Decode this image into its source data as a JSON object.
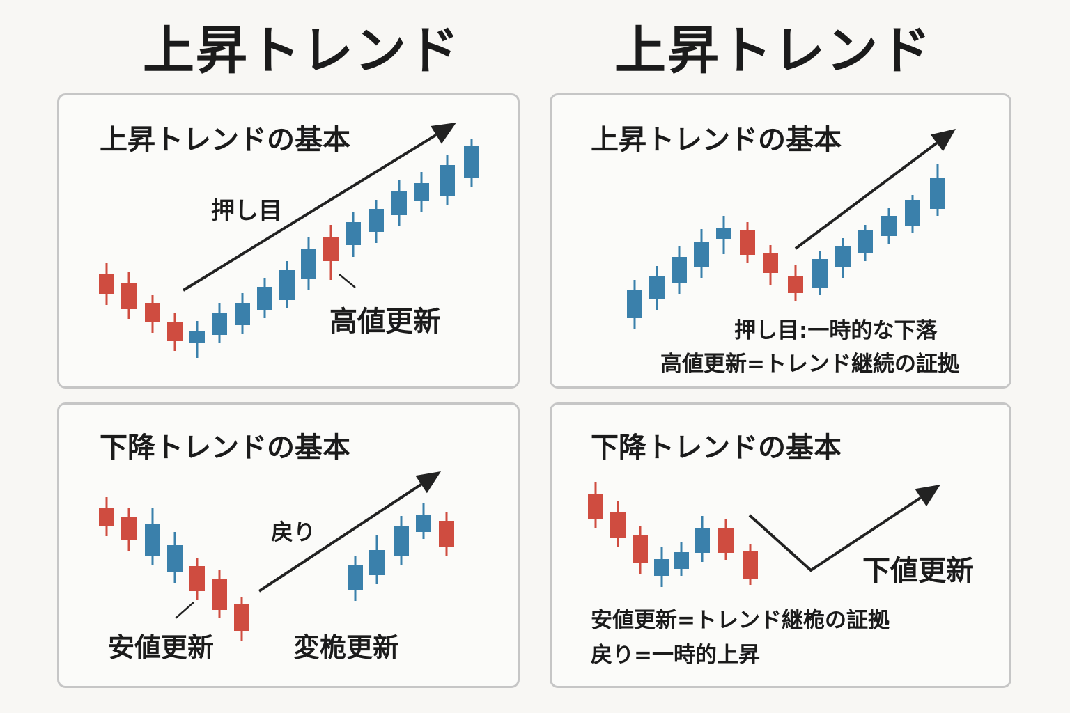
{
  "titles": {
    "left": "上昇トレンド",
    "right": "上昇トレンド"
  },
  "colors": {
    "bull": "#3a80ab",
    "bear": "#cf4c40",
    "ink": "#222222",
    "border": "#c6c6c6"
  },
  "panels": {
    "tl": {
      "title": "上昇トレンドの基本",
      "label_pullback": "押し目",
      "label_high": "高値更新"
    },
    "tr": {
      "title": "上昇トレンドの基本",
      "note1": "押し目:一時的な下落",
      "note2": "高値更新=トレンド継続の証拠"
    },
    "bl": {
      "title": "下降トレンドの基本",
      "label_return": "戻り",
      "label_low": "安値更新",
      "label_change": "変桅更新"
    },
    "br": {
      "title": "下降トレンドの基本",
      "label_low": "下値更新",
      "note1": "安値更新=トレンド継桅の証拠",
      "note2": "戻り=一時的上昇"
    }
  }
}
